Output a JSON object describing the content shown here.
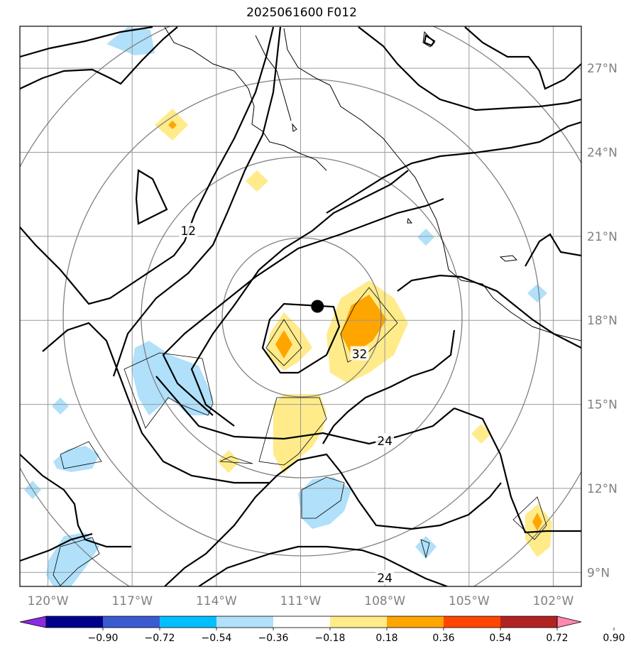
{
  "title": "2025061600 F012",
  "map": {
    "lon_range": [
      -121,
      -101
    ],
    "lat_range": [
      8.5,
      28.5
    ],
    "lon_ticks": [
      {
        "value": -120,
        "label": "120°W"
      },
      {
        "value": -117,
        "label": "117°W"
      },
      {
        "value": -114,
        "label": "114°W"
      },
      {
        "value": -111,
        "label": "111°W"
      },
      {
        "value": -108,
        "label": "108°W"
      },
      {
        "value": -105,
        "label": "105°W"
      },
      {
        "value": -102,
        "label": "102°W"
      }
    ],
    "lat_ticks": [
      {
        "value": 9,
        "label": "9°N"
      },
      {
        "value": 12,
        "label": "12°N"
      },
      {
        "value": 15,
        "label": "15°N"
      },
      {
        "value": 18,
        "label": "18°N"
      },
      {
        "value": 21,
        "label": "21°N"
      },
      {
        "value": 24,
        "label": "24°N"
      },
      {
        "value": 27,
        "label": "27°N"
      }
    ],
    "contour_labels": [
      {
        "text": "12",
        "lon": -115.0,
        "lat": 21.2
      },
      {
        "text": "32",
        "lon": -108.9,
        "lat": 16.8
      },
      {
        "text": "24",
        "lon": -108.0,
        "lat": 13.7
      },
      {
        "text": "24",
        "lon": -108.0,
        "lat": 8.8
      }
    ],
    "storm_center": {
      "lon": -110.4,
      "lat": 18.5
    }
  },
  "colorbar": {
    "labels": [
      "−0.90",
      "−0.72",
      "−0.54",
      "−0.36",
      "−0.18",
      "0.18",
      "0.36",
      "0.54",
      "0.72",
      "0.90"
    ],
    "colors": [
      "#8b2be2",
      "#00008b",
      "#3a5ad0",
      "#00bfff",
      "#b0e0fa",
      "#ffffff",
      "#ffeb8a",
      "#ffa500",
      "#ff4500",
      "#b22222",
      "#ff88b0"
    ]
  }
}
